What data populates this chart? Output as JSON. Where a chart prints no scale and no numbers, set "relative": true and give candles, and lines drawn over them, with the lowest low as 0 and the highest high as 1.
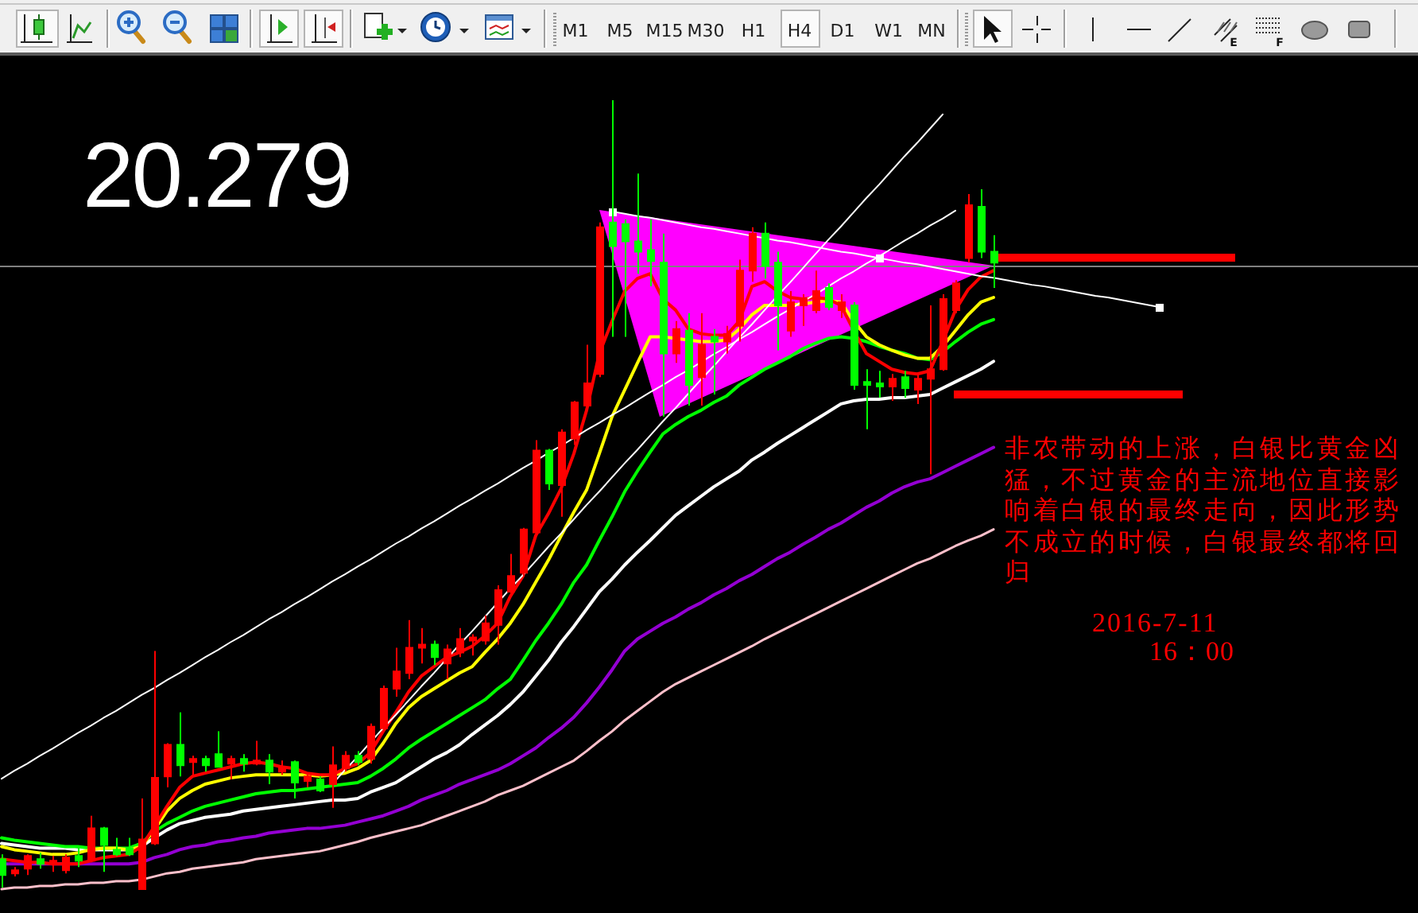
{
  "chart_data": {
    "type": "candlestick",
    "relative": true,
    "categories": [
      null,
      null,
      null,
      null,
      null,
      null,
      null,
      null,
      null,
      null,
      null,
      null,
      null,
      null,
      null,
      null,
      null,
      null,
      null,
      null,
      null,
      null,
      null,
      null,
      null,
      null,
      null,
      null,
      null,
      null,
      null,
      null,
      null,
      null,
      null,
      null,
      null,
      null,
      null,
      null,
      null,
      null,
      null,
      null,
      null,
      null,
      null,
      null,
      null,
      null,
      null,
      null,
      null,
      null,
      null,
      null,
      null,
      null,
      null,
      null,
      null,
      null,
      null,
      null,
      null,
      null,
      null,
      null,
      null,
      null,
      null,
      null,
      null,
      null,
      null,
      null,
      null,
      null,
      null,
      null,
      null,
      null,
      null,
      null,
      null,
      null,
      null,
      null,
      null,
      null,
      null,
      null,
      null,
      null,
      null,
      null,
      null,
      null,
      null,
      null,
      null,
      null,
      null,
      null,
      null,
      null,
      null,
      null,
      null,
      null,
      null,
      null
    ],
    "ohlc": [
      [
        0.038,
        0.044,
        0.002,
        0.018
      ],
      [
        0.02,
        0.028,
        0.016,
        0.024
      ],
      [
        0.026,
        0.044,
        0.018,
        0.042
      ],
      [
        0.038,
        0.046,
        0.026,
        0.032
      ],
      [
        0.032,
        0.042,
        0.022,
        0.036
      ],
      [
        0.024,
        0.044,
        0.02,
        0.04
      ],
      [
        0.042,
        0.052,
        0.028,
        0.036
      ],
      [
        0.036,
        0.093,
        0.034,
        0.077
      ],
      [
        0.077,
        0.079,
        0.022,
        0.056
      ],
      [
        0.05,
        0.065,
        0.042,
        0.044
      ],
      [
        0.052,
        0.065,
        0.042,
        0.044
      ],
      [
        0,
        0.115,
        0,
        0.063
      ],
      [
        0.058,
        0.302,
        0.056,
        0.141
      ],
      [
        0.143,
        0.185,
        0.129,
        0.183
      ],
      [
        0.183,
        0.224,
        0.143,
        0.157
      ],
      [
        0.161,
        0.169,
        0.143,
        0.165
      ],
      [
        0.165,
        0.169,
        0.149,
        0.157
      ],
      [
        0.171,
        0.2,
        0.155,
        0.155
      ],
      [
        0.159,
        0.169,
        0.139,
        0.165
      ],
      [
        0.165,
        0.171,
        0.149,
        0.159
      ],
      [
        0.159,
        0.188,
        0.157,
        0.163
      ],
      [
        0.163,
        0.171,
        0.133,
        0.149
      ],
      [
        0.149,
        0.163,
        0.145,
        0.155
      ],
      [
        0.161,
        0.163,
        0.115,
        0.135
      ],
      [
        0.137,
        0.147,
        0.129,
        0.143
      ],
      [
        0.139,
        0.143,
        0.123,
        0.125
      ],
      [
        0.133,
        0.181,
        0.103,
        0.157
      ],
      [
        0.153,
        0.175,
        0.149,
        0.169
      ],
      [
        0.169,
        0.175,
        0.157,
        0.161
      ],
      [
        0.165,
        0.21,
        0.159,
        0.206
      ],
      [
        0.204,
        0.258,
        0.2,
        0.254
      ],
      [
        0.254,
        0.306,
        0.244,
        0.276
      ],
      [
        0.274,
        0.341,
        0.266,
        0.306
      ],
      [
        0.306,
        0.331,
        0.286,
        0.31
      ],
      [
        0.31,
        0.315,
        0.284,
        0.294
      ],
      [
        0.286,
        0.31,
        0.266,
        0.304
      ],
      [
        0.3,
        0.331,
        0.294,
        0.317
      ],
      [
        0.315,
        0.323,
        0.296,
        0.319
      ],
      [
        0.315,
        0.347,
        0.31,
        0.337
      ],
      [
        0.335,
        0.385,
        0.31,
        0.379
      ],
      [
        0.377,
        0.425,
        0.375,
        0.397
      ],
      [
        0.401,
        0.458,
        0.397,
        0.456
      ],
      [
        0.452,
        0.569,
        0.448,
        0.556
      ],
      [
        0.556,
        0.558,
        0.506,
        0.514
      ],
      [
        0.512,
        0.583,
        0.472,
        0.579
      ],
      [
        0.571,
        0.619,
        0.563,
        0.617
      ],
      [
        0.613,
        0.69,
        0.607,
        0.641
      ],
      [
        0.653,
        0.845,
        0.649,
        0.839
      ],
      [
        0.845,
        1,
        0.7,
        0.815
      ],
      [
        0.843,
        0.849,
        0.7,
        0.821
      ],
      [
        0.821,
        0.907,
        0.78,
        0.808
      ],
      [
        0.81,
        0.849,
        0.764,
        0.796
      ],
      [
        0.794,
        0.831,
        0.599,
        0.679
      ],
      [
        0.679,
        0.72,
        0.667,
        0.71
      ],
      [
        0.708,
        0.73,
        0.613,
        0.639
      ],
      [
        0.649,
        0.73,
        0.613,
        0.69
      ],
      [
        0.7,
        0.71,
        0.627,
        0.694
      ],
      [
        0.694,
        0.714,
        0.679,
        0.704
      ],
      [
        0.714,
        0.798,
        0.694,
        0.784
      ],
      [
        0.784,
        0.839,
        0.77,
        0.831
      ],
      [
        0.831,
        0.845,
        0.774,
        0.79
      ],
      [
        0.794,
        0.808,
        0.683,
        0.74
      ],
      [
        0.708,
        0.758,
        0.7,
        0.744
      ],
      [
        0.74,
        0.754,
        0.714,
        0.748
      ],
      [
        0.734,
        0.784,
        0.73,
        0.758
      ],
      [
        0.762,
        0.768,
        0.734,
        0.738
      ],
      [
        0.734,
        0.754,
        0.724,
        0.744
      ],
      [
        0.74,
        0.744,
        0.633,
        0.639
      ],
      [
        0.643,
        0.659,
        0.583,
        0.639
      ],
      [
        0.641,
        0.657,
        0.623,
        0.637
      ],
      [
        0.637,
        0.653,
        0.619,
        0.647
      ],
      [
        0.649,
        0.657,
        0.623,
        0.635
      ],
      [
        0.633,
        0.653,
        0.615,
        0.647
      ],
      [
        0.647,
        0.74,
        0.526,
        0.659
      ],
      [
        0.659,
        0.754,
        0.657,
        0.748
      ],
      [
        0.734,
        0.772,
        0.73,
        0.768
      ],
      [
        0.8,
        0.881,
        0.794,
        0.867
      ],
      [
        0.865,
        0.887,
        0.8,
        0.808
      ],
      [
        0.808,
        0.829,
        0.762,
        0.794
      ],
      null,
      null,
      null,
      null,
      null,
      null,
      null,
      null,
      null,
      null,
      null,
      null,
      null,
      null,
      null,
      null,
      null,
      null,
      null,
      null,
      null,
      null,
      null,
      null,
      null,
      null,
      null,
      null,
      null,
      null,
      null,
      null,
      null
    ],
    "colors": [
      "#00ff00",
      "#ff0000",
      "#ff0000",
      "#00ff00",
      "#ff0000",
      "#ff0000",
      "#00ff00",
      "#ff0000",
      "#00ff00",
      "#00ff00",
      "#00ff00",
      "#ff0000",
      "#ff0000",
      "#ff0000",
      "#00ff00",
      "#ff0000",
      "#00ff00",
      "#00ff00",
      "#ff0000",
      "#00ff00",
      "#ff0000",
      "#00ff00",
      "#ff0000",
      "#00ff00",
      "#ff0000",
      "#00ff00",
      "#ff0000",
      "#ff0000",
      "#00ff00",
      "#ff0000",
      "#ff0000",
      "#ff0000",
      "#ff0000",
      "#ff0000",
      "#00ff00",
      "#ff0000",
      "#ff0000",
      "#ff0000",
      "#ff0000",
      "#ff0000",
      "#ff0000",
      "#ff0000",
      "#ff0000",
      "#00ff00",
      "#ff0000",
      "#ff0000",
      "#ff0000",
      "#ff0000",
      "#00ff00",
      "#00ff00",
      "#00ff00",
      "#00ff00",
      "#00ff00",
      "#ff0000",
      "#00ff00",
      "#ff0000",
      "#00ff00",
      "#ff0000",
      "#ff0000",
      "#ff0000",
      "#00ff00",
      "#00ff00",
      "#ff0000",
      "#ff0000",
      "#ff0000",
      "#00ff00",
      "#ff0000",
      "#00ff00",
      "#00ff00",
      "#00ff00",
      "#ff0000",
      "#00ff00",
      "#ff0000",
      "#ff0000",
      "#ff0000",
      "#ff0000",
      "#ff0000",
      "#00ff00",
      "#00ff00",
      null,
      null,
      null,
      null,
      null,
      null,
      null,
      null,
      null,
      null,
      null,
      null,
      null,
      null,
      null,
      null,
      null,
      null,
      null,
      null,
      null,
      null,
      null,
      null,
      null,
      null,
      null,
      null,
      null,
      null,
      null,
      null,
      null
    ],
    "series": [
      {
        "type": "line",
        "color": "#ffc0cb",
        "values": [
          0,
          0.002,
          0.002,
          0.004,
          0.004,
          0.006,
          0.006,
          0.008,
          0.008,
          0.01,
          0.01,
          0.012,
          0.016,
          0.02,
          0.022,
          0.026,
          0.028,
          0.03,
          0.032,
          0.034,
          0.038,
          0.04,
          0.042,
          0.044,
          0.046,
          0.048,
          0.052,
          0.056,
          0.06,
          0.065,
          0.069,
          0.073,
          0.077,
          0.081,
          0.087,
          0.093,
          0.099,
          0.105,
          0.111,
          0.119,
          0.125,
          0.131,
          0.139,
          0.147,
          0.155,
          0.163,
          0.175,
          0.188,
          0.2,
          0.214,
          0.226,
          0.238,
          0.25,
          0.26,
          0.268,
          0.276,
          0.284,
          0.292,
          0.3,
          0.308,
          0.317,
          0.325,
          0.333,
          0.341,
          0.349,
          0.357,
          0.365,
          0.373,
          0.381,
          0.389,
          0.397,
          0.405,
          0.413,
          0.419,
          0.427,
          0.435,
          0.442,
          0.448,
          0.456,
          null,
          null,
          null,
          null,
          null,
          null,
          null,
          null,
          null,
          null,
          null,
          null,
          null,
          null,
          null,
          null,
          null,
          null,
          null,
          null,
          null,
          null,
          null,
          null,
          null,
          null,
          null,
          null,
          null,
          null,
          null,
          null,
          null
        ]
      },
      {
        "type": "line",
        "color": "#9400d3",
        "values": [
          0.032,
          0.032,
          0.032,
          0.032,
          0.032,
          0.032,
          0.032,
          0.032,
          0.032,
          0.032,
          0.032,
          0.034,
          0.04,
          0.044,
          0.05,
          0.054,
          0.056,
          0.06,
          0.062,
          0.065,
          0.067,
          0.071,
          0.073,
          0.075,
          0.077,
          0.077,
          0.079,
          0.081,
          0.085,
          0.089,
          0.093,
          0.099,
          0.105,
          0.113,
          0.119,
          0.125,
          0.133,
          0.139,
          0.145,
          0.151,
          0.159,
          0.169,
          0.179,
          0.192,
          0.204,
          0.218,
          0.236,
          0.256,
          0.278,
          0.302,
          0.317,
          0.327,
          0.337,
          0.345,
          0.355,
          0.363,
          0.373,
          0.381,
          0.391,
          0.399,
          0.409,
          0.419,
          0.427,
          0.437,
          0.446,
          0.456,
          0.464,
          0.474,
          0.484,
          0.492,
          0.502,
          0.51,
          0.516,
          0.52,
          0.528,
          0.536,
          0.544,
          0.552,
          0.56,
          null,
          null,
          null,
          null,
          null,
          null,
          null,
          null,
          null,
          null,
          null,
          null,
          null,
          null,
          null,
          null,
          null,
          null,
          null,
          null,
          null,
          null,
          null,
          null,
          null,
          null,
          null,
          null,
          null,
          null,
          null,
          null,
          null
        ]
      },
      {
        "type": "line",
        "color": "#ffffff",
        "values": [
          0.058,
          0.056,
          0.054,
          0.052,
          0.052,
          0.052,
          0.05,
          0.05,
          0.05,
          0.05,
          0.05,
          0.054,
          0.065,
          0.075,
          0.083,
          0.087,
          0.091,
          0.093,
          0.095,
          0.099,
          0.101,
          0.103,
          0.105,
          0.107,
          0.109,
          0.111,
          0.113,
          0.113,
          0.115,
          0.123,
          0.129,
          0.135,
          0.145,
          0.155,
          0.165,
          0.173,
          0.183,
          0.196,
          0.208,
          0.22,
          0.234,
          0.25,
          0.27,
          0.29,
          0.313,
          0.333,
          0.355,
          0.377,
          0.393,
          0.411,
          0.427,
          0.442,
          0.458,
          0.474,
          0.486,
          0.498,
          0.51,
          0.52,
          0.53,
          0.544,
          0.554,
          0.565,
          0.575,
          0.585,
          0.595,
          0.605,
          0.615,
          0.619,
          0.621,
          0.621,
          0.623,
          0.623,
          0.625,
          0.627,
          0.635,
          0.643,
          0.651,
          0.659,
          0.669,
          null,
          null,
          null,
          null,
          null,
          null,
          null,
          null,
          null,
          null,
          null,
          null,
          null,
          null,
          null,
          null,
          null,
          null,
          null,
          null,
          null,
          null,
          null,
          null,
          null,
          null,
          null,
          null,
          null,
          null,
          null,
          null,
          null
        ]
      },
      {
        "type": "line",
        "color": "#00ff00",
        "values": [
          0.065,
          0.062,
          0.06,
          0.058,
          0.056,
          0.054,
          0.054,
          0.052,
          0.052,
          0.052,
          0.052,
          0.058,
          0.073,
          0.083,
          0.091,
          0.099,
          0.105,
          0.109,
          0.113,
          0.117,
          0.121,
          0.123,
          0.125,
          0.125,
          0.127,
          0.129,
          0.131,
          0.133,
          0.135,
          0.143,
          0.153,
          0.165,
          0.179,
          0.19,
          0.2,
          0.21,
          0.22,
          0.23,
          0.24,
          0.254,
          0.266,
          0.29,
          0.315,
          0.337,
          0.361,
          0.389,
          0.411,
          0.442,
          0.472,
          0.504,
          0.53,
          0.554,
          0.577,
          0.589,
          0.599,
          0.607,
          0.617,
          0.625,
          0.639,
          0.649,
          0.659,
          0.667,
          0.675,
          0.685,
          0.692,
          0.698,
          0.7,
          0.698,
          0.694,
          0.688,
          0.683,
          0.679,
          0.673,
          0.671,
          0.681,
          0.694,
          0.706,
          0.716,
          0.722,
          null,
          null,
          null,
          null,
          null,
          null,
          null,
          null,
          null,
          null,
          null,
          null,
          null,
          null,
          null,
          null,
          null,
          null,
          null,
          null,
          null,
          null,
          null,
          null,
          null,
          null,
          null,
          null,
          null,
          null,
          null,
          null,
          null
        ]
      },
      {
        "type": "line",
        "color": "#ffff00",
        "values": [
          0.054,
          0.05,
          0.048,
          0.046,
          0.044,
          0.044,
          0.046,
          0.05,
          0.052,
          0.052,
          0.05,
          0.054,
          0.075,
          0.099,
          0.115,
          0.125,
          0.133,
          0.137,
          0.141,
          0.143,
          0.145,
          0.145,
          0.145,
          0.145,
          0.145,
          0.143,
          0.145,
          0.147,
          0.153,
          0.163,
          0.185,
          0.21,
          0.23,
          0.244,
          0.254,
          0.264,
          0.274,
          0.282,
          0.3,
          0.317,
          0.337,
          0.361,
          0.389,
          0.417,
          0.448,
          0.478,
          0.506,
          0.552,
          0.599,
          0.633,
          0.667,
          0.7,
          0.7,
          0.698,
          0.696,
          0.694,
          0.694,
          0.696,
          0.71,
          0.728,
          0.74,
          0.74,
          0.74,
          0.742,
          0.744,
          0.746,
          0.744,
          0.72,
          0.7,
          0.69,
          0.683,
          0.677,
          0.673,
          0.673,
          0.688,
          0.708,
          0.728,
          0.744,
          0.75,
          null,
          null,
          null,
          null,
          null,
          null,
          null,
          null,
          null,
          null,
          null,
          null,
          null,
          null,
          null,
          null,
          null,
          null,
          null,
          null,
          null,
          null,
          null,
          null,
          null,
          null,
          null,
          null,
          null,
          null,
          null,
          null,
          null
        ]
      },
      {
        "type": "line",
        "color": "#ff0000",
        "values": [
          0.038,
          0.036,
          0.034,
          0.034,
          0.032,
          0.032,
          0.032,
          0.036,
          0.04,
          0.042,
          0.044,
          0.054,
          0.079,
          0.105,
          0.129,
          0.143,
          0.147,
          0.151,
          0.155,
          0.159,
          0.161,
          0.159,
          0.155,
          0.153,
          0.147,
          0.145,
          0.145,
          0.153,
          0.159,
          0.173,
          0.2,
          0.224,
          0.25,
          0.27,
          0.282,
          0.294,
          0.3,
          0.308,
          0.321,
          0.337,
          0.371,
          0.397,
          0.448,
          0.476,
          0.508,
          0.552,
          0.607,
          0.679,
          0.72,
          0.758,
          0.774,
          0.78,
          0.748,
          0.734,
          0.71,
          0.704,
          0.702,
          0.702,
          0.72,
          0.764,
          0.77,
          0.758,
          0.75,
          0.748,
          0.75,
          0.748,
          0.74,
          0.708,
          0.679,
          0.669,
          0.659,
          0.655,
          0.653,
          0.657,
          0.694,
          0.734,
          0.76,
          0.776,
          0.784,
          null,
          null,
          null,
          null,
          null,
          null,
          null,
          null,
          null,
          null,
          null,
          null,
          null,
          null,
          null,
          null,
          null,
          null,
          null,
          null,
          null,
          null,
          null,
          null,
          null,
          null,
          null,
          null,
          null,
          null,
          null,
          null,
          null
        ]
      },
      {
        "type": "line",
        "color": "#ffffff",
        "values": [
          0.14,
          0.15,
          0.159,
          0.169,
          0.178,
          0.188,
          0.198,
          0.207,
          0.217,
          0.226,
          0.236,
          0.246,
          0.255,
          0.265,
          0.274,
          0.284,
          0.294,
          0.303,
          0.313,
          0.322,
          0.332,
          0.342,
          0.351,
          0.361,
          0.37,
          0.38,
          0.39,
          0.399,
          0.409,
          0.418,
          0.428,
          0.438,
          0.447,
          0.457,
          0.466,
          0.476,
          0.486,
          0.495,
          0.505,
          0.514,
          0.524,
          0.534,
          0.543,
          0.553,
          0.562,
          0.572,
          0.582,
          0.591,
          0.601,
          0.61,
          0.62,
          0.63,
          0.639,
          0.649,
          0.658,
          0.668,
          0.678,
          0.687,
          0.697,
          0.706,
          0.716,
          0.726,
          0.735,
          0.745,
          0.754,
          0.764,
          0.774,
          0.783,
          0.793,
          0.802,
          0.812,
          0.822,
          0.831,
          0.841,
          0.85,
          0.86,
          null,
          null,
          null,
          null,
          null,
          null,
          null,
          null,
          null,
          null,
          null,
          null,
          null,
          null,
          null,
          null,
          null,
          null,
          null,
          null,
          null,
          null,
          null,
          null,
          null,
          null,
          null,
          null,
          null,
          null,
          null,
          null,
          null,
          null,
          null,
          null
        ]
      },
      {
        "type": "line",
        "color": "#ffffff",
        "values": [
          null,
          null,
          null,
          null,
          null,
          null,
          null,
          null,
          null,
          null,
          null,
          null,
          null,
          null,
          null,
          null,
          null,
          null,
          null,
          null,
          null,
          null,
          null,
          null,
          null,
          null,
          0.133,
          0.151,
          0.168,
          0.186,
          0.204,
          0.221,
          0.239,
          0.257,
          0.274,
          0.292,
          0.31,
          0.327,
          0.345,
          0.363,
          0.381,
          0.398,
          0.416,
          0.434,
          0.451,
          0.469,
          0.487,
          0.504,
          0.522,
          0.54,
          0.557,
          0.575,
          0.593,
          0.61,
          0.628,
          0.646,
          0.663,
          0.681,
          0.699,
          0.716,
          0.734,
          0.752,
          0.769,
          0.787,
          0.805,
          0.823,
          0.84,
          0.858,
          0.876,
          0.893,
          0.911,
          0.929,
          0.946,
          0.964,
          0.982,
          null,
          null,
          null,
          null,
          null,
          null,
          null,
          null,
          null,
          null,
          null,
          null,
          null,
          null,
          null,
          null,
          null,
          null,
          null,
          null,
          null,
          null,
          null,
          null,
          null,
          null,
          null,
          null,
          null,
          null,
          null,
          null,
          null,
          null,
          null,
          null,
          null
        ]
      },
      {
        "type": "line",
        "color": "#ffffff",
        "values": [
          null,
          null,
          null,
          null,
          null,
          null,
          null,
          null,
          null,
          null,
          null,
          null,
          null,
          null,
          null,
          null,
          null,
          null,
          null,
          null,
          null,
          null,
          null,
          null,
          null,
          null,
          null,
          null,
          null,
          null,
          null,
          null,
          null,
          null,
          null,
          null,
          null,
          null,
          null,
          null,
          null,
          null,
          null,
          null,
          null,
          null,
          null,
          null,
          0.859,
          0.856,
          0.853,
          0.851,
          0.848,
          0.845,
          0.842,
          0.839,
          0.837,
          0.834,
          0.831,
          0.828,
          0.825,
          0.822,
          0.82,
          0.817,
          0.814,
          0.811,
          0.808,
          0.806,
          0.803,
          0.8,
          0.797,
          0.794,
          0.792,
          0.789,
          0.786,
          0.783,
          0.78,
          0.777,
          0.775,
          0.772,
          0.769,
          0.766,
          0.764,
          0.761,
          0.758,
          0.755,
          0.752,
          0.75,
          0.747,
          0.744,
          0.741,
          0.738,
          null,
          null,
          null,
          null,
          null,
          null,
          null,
          null,
          null,
          null,
          null,
          null,
          null,
          null,
          null,
          null,
          null,
          null,
          null,
          null
        ]
      },
      {
        "type": "scatter",
        "color": "#ffffff",
        "marker": "square",
        "values": [
          null,
          null,
          null,
          null,
          null,
          null,
          null,
          null,
          null,
          null,
          null,
          null,
          null,
          null,
          null,
          null,
          null,
          null,
          null,
          null,
          null,
          null,
          null,
          null,
          null,
          null,
          null,
          null,
          null,
          null,
          null,
          null,
          null,
          null,
          null,
          null,
          null,
          null,
          null,
          null,
          null,
          null,
          null,
          null,
          null,
          null,
          null,
          null,
          0.859,
          null,
          null,
          null,
          null,
          null,
          null,
          null,
          null,
          null,
          null,
          null,
          null,
          null,
          null,
          null,
          null,
          null,
          null,
          null,
          null,
          0.8,
          null,
          null,
          null,
          null,
          null,
          null,
          null,
          null,
          null,
          null,
          null,
          null,
          null,
          null,
          null,
          null,
          null,
          null,
          null,
          null,
          null,
          0.738,
          null,
          null,
          null,
          null,
          null,
          null,
          null,
          null,
          null,
          null,
          null,
          null,
          null,
          null,
          null,
          null,
          null,
          null,
          null,
          null
        ]
      }
    ],
    "ref_lines": [
      {
        "axis": "y",
        "value": 0.79,
        "color": "#808080"
      }
    ],
    "annotations": [
      "20.279",
      "非农带动的上涨，白银比黄金凶猛，不过黄金的主流地位直接影响着白银的最终走向，因此形势不成立的时候，白银最终都将回归",
      "2016-7-11",
      "16：00",
      "M1",
      "M5",
      "M15",
      "M30",
      "H1",
      "H4",
      "D1",
      "W1",
      "MN",
      "E",
      "F"
    ]
  }
}
